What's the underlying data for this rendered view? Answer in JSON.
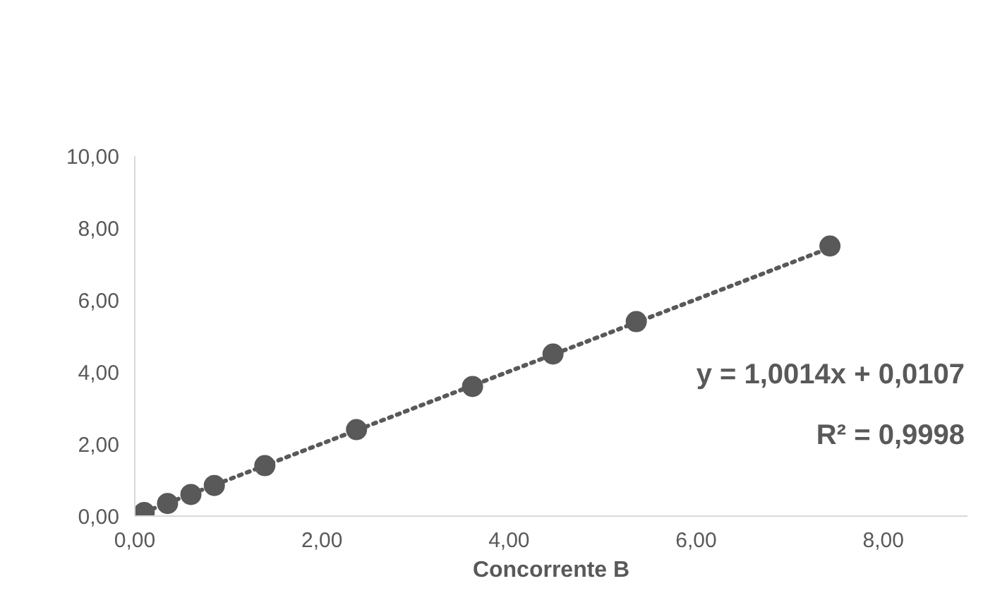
{
  "chart_data": {
    "type": "scatter",
    "xlabel": "Concorrente B",
    "xlim": [
      0,
      8.9
    ],
    "ylim": [
      0,
      10
    ],
    "xticks": [
      {
        "value": 0,
        "label": "0,00"
      },
      {
        "value": 2,
        "label": "2,00"
      },
      {
        "value": 4,
        "label": "4,00"
      },
      {
        "value": 6,
        "label": "6,00"
      },
      {
        "value": 8,
        "label": "8,00"
      }
    ],
    "yticks": [
      {
        "value": 0,
        "label": "0,00"
      },
      {
        "value": 2,
        "label": "2,00"
      },
      {
        "value": 4,
        "label": "4,00"
      },
      {
        "value": 6,
        "label": "6,00"
      },
      {
        "value": 8,
        "label": "8,00"
      },
      {
        "value": 10,
        "label": "10,00"
      }
    ],
    "grid": false,
    "series": [
      {
        "type": "scatter",
        "color": "#595959",
        "marker": "circle",
        "x": [
          0.1,
          0.35,
          0.6,
          0.85,
          1.39,
          2.37,
          3.61,
          4.47,
          5.36,
          7.43
        ],
        "values": [
          0.1,
          0.35,
          0.6,
          0.85,
          1.4,
          2.4,
          3.6,
          4.5,
          5.4,
          7.5
        ]
      },
      {
        "type": "line",
        "color": "#595959",
        "line_style": "dotted",
        "marker": "none",
        "x": [
          0.1,
          7.43
        ],
        "values": [
          0.11,
          7.45
        ]
      }
    ],
    "annotations": [
      "y = 1,0014x + 0,0107",
      "R² = 0,9998"
    ]
  }
}
